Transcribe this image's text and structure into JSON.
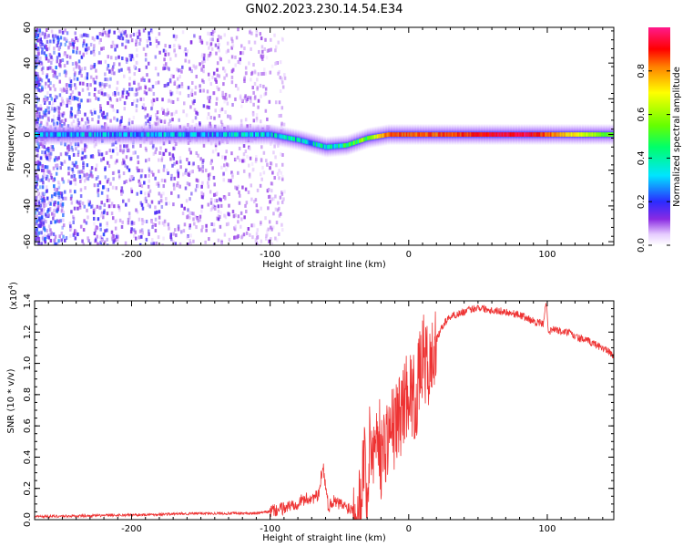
{
  "title": "GN02.2023.230.14.54.E34",
  "chart_data": [
    {
      "type": "heatmap",
      "xlabel": "Height of straight line (km)",
      "ylabel": "Frequency (Hz)",
      "xlim": [
        -270,
        148
      ],
      "ylim": [
        -62,
        60
      ],
      "xticks": [
        -200,
        -100,
        0,
        100
      ],
      "yticks": [
        -60,
        -40,
        -20,
        0,
        20,
        40,
        60
      ],
      "colorbar": {
        "label": "Normalized spectral amplitude",
        "ticks": [
          "0.0",
          "0.2",
          "0.4",
          "0.6",
          "0.8"
        ],
        "range": [
          0,
          1
        ],
        "colormap": "rainbow (white-violet-blue-cyan-green-yellow-red-magenta)"
      },
      "band_center_hz": [
        {
          "x": -270,
          "y": 0
        },
        {
          "x": -100,
          "y": 0
        },
        {
          "x": -80,
          "y": -3
        },
        {
          "x": -60,
          "y": -7
        },
        {
          "x": -45,
          "y": -6
        },
        {
          "x": -30,
          "y": -2
        },
        {
          "x": -15,
          "y": 0
        },
        {
          "x": 148,
          "y": 0
        }
      ],
      "band_peak_amplitude": [
        {
          "x": -270,
          "v": 0.25
        },
        {
          "x": -100,
          "v": 0.3
        },
        {
          "x": -60,
          "v": 0.35
        },
        {
          "x": -30,
          "v": 0.55
        },
        {
          "x": -15,
          "v": 0.85
        },
        {
          "x": 20,
          "v": 0.85
        },
        {
          "x": 85,
          "v": 0.95
        },
        {
          "x": 148,
          "v": 0.5
        }
      ]
    },
    {
      "type": "line",
      "xlabel": "Height of straight line (km)",
      "ylabel": "SNR (10 * v/v)",
      "yscale_label": "(x10",
      "yscale_exp": "4",
      "xlim": [
        -270,
        148
      ],
      "ylim": [
        0,
        1.4
      ],
      "xticks": [
        -200,
        -100,
        0,
        100
      ],
      "yticks": [
        "0.0",
        "0.2",
        "0.4",
        "0.6",
        "0.8",
        "1.0",
        "1.2",
        "1.4"
      ],
      "color": "#ee3333",
      "series": [
        {
          "x": [
            -270,
            -230,
            -200,
            -150,
            -110,
            -95,
            -85,
            -75,
            -65,
            -62,
            -58,
            -55,
            -50,
            -45,
            -40,
            -35,
            -32,
            -30,
            -28,
            -25,
            -22,
            -20,
            -15,
            -10,
            -5,
            0,
            5,
            10,
            15,
            20,
            25,
            30,
            40,
            50,
            60,
            70,
            80,
            90,
            97,
            99,
            101,
            105,
            110,
            115,
            120,
            130,
            140,
            148
          ],
          "y": [
            0.02,
            0.025,
            0.03,
            0.04,
            0.04,
            0.06,
            0.09,
            0.13,
            0.15,
            0.36,
            0.08,
            0.12,
            0.1,
            0.08,
            0.07,
            0.09,
            0.45,
            0.1,
            0.5,
            0.45,
            0.6,
            0.4,
            0.55,
            0.6,
            0.7,
            0.85,
            0.75,
            1.05,
            0.95,
            1.15,
            1.25,
            1.3,
            1.33,
            1.36,
            1.34,
            1.33,
            1.31,
            1.27,
            1.25,
            1.4,
            1.2,
            1.22,
            1.2,
            1.2,
            1.17,
            1.14,
            1.1,
            1.05
          ]
        }
      ]
    }
  ]
}
